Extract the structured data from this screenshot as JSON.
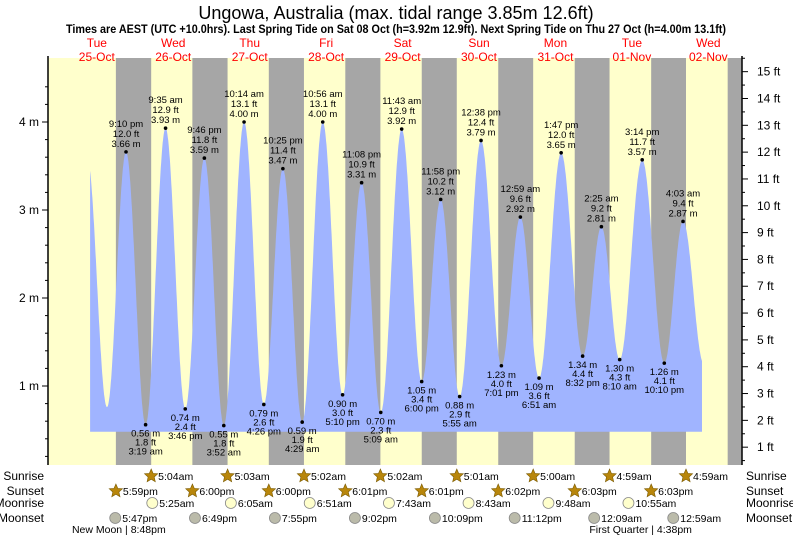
{
  "title": "Ungowa, Australia (max. tidal range 3.85m 12.6ft)",
  "subtitle": "Times are AEST (UTC +10.0hrs). Last Spring Tide on Sat 08 Oct (h=3.92m 12.9ft). Next Spring Tide on Thu 27 Oct (h=4.00m 13.1ft)",
  "colors": {
    "day": "#ffffcc",
    "night": "#a6a6a6",
    "water": "#a0b4ff",
    "daylabel": "#ff0000",
    "sun": "#b8860b",
    "moonrise": "#ffffcc",
    "moonset": "#bbbbaa"
  },
  "chart_data": {
    "type": "area",
    "title": "Ungowa, Australia (max. tidal range 3.85m 12.6ft)",
    "days": [
      {
        "weekday": "Tue",
        "date": "25-Oct"
      },
      {
        "weekday": "Wed",
        "date": "26-Oct"
      },
      {
        "weekday": "Thu",
        "date": "27-Oct"
      },
      {
        "weekday": "Fri",
        "date": "28-Oct"
      },
      {
        "weekday": "Sat",
        "date": "29-Oct"
      },
      {
        "weekday": "Sun",
        "date": "30-Oct"
      },
      {
        "weekday": "Mon",
        "date": "31-Oct"
      },
      {
        "weekday": "Tue",
        "date": "01-Nov"
      },
      {
        "weekday": "Wed",
        "date": "02-Nov"
      }
    ],
    "y_left": {
      "unit": "m",
      "ticks": [
        "1 m",
        "2 m",
        "3 m",
        "4 m"
      ],
      "values": [
        1,
        2,
        3,
        4
      ],
      "ylim": [
        0,
        4.7
      ]
    },
    "y_right": {
      "unit": "ft",
      "ticks": [
        "1 ft",
        "2 ft",
        "3 ft",
        "4 ft",
        "5 ft",
        "6 ft",
        "7 ft",
        "8 ft",
        "9 ft",
        "10 ft",
        "11 ft",
        "12 ft",
        "13 ft",
        "14 ft",
        "15 ft"
      ],
      "values": [
        1,
        2,
        3,
        4,
        5,
        6,
        7,
        8,
        9,
        10,
        11,
        12,
        13,
        14,
        15
      ]
    },
    "tides": [
      {
        "day": 0,
        "type": "high",
        "time": "9:10 pm",
        "m": "3.66 m",
        "ft": "12.0 ft",
        "value": 3.66
      },
      {
        "day": 1,
        "type": "low",
        "time": "3:19 am",
        "m": "0.56 m",
        "ft": "1.8 ft",
        "value": 0.56
      },
      {
        "day": 1,
        "type": "high",
        "time": "9:35 am",
        "m": "3.93 m",
        "ft": "12.9 ft",
        "value": 3.93
      },
      {
        "day": 1,
        "type": "low",
        "time": "3:46 pm",
        "m": "0.74 m",
        "ft": "2.4 ft",
        "value": 0.74
      },
      {
        "day": 1,
        "type": "high",
        "time": "9:46 pm",
        "m": "3.59 m",
        "ft": "11.8 ft",
        "value": 3.59
      },
      {
        "day": 2,
        "type": "low",
        "time": "3:52 am",
        "m": "0.55 m",
        "ft": "1.8 ft",
        "value": 0.55
      },
      {
        "day": 2,
        "type": "high",
        "time": "10:14 am",
        "m": "4.00 m",
        "ft": "13.1 ft",
        "value": 4.0
      },
      {
        "day": 2,
        "type": "low",
        "time": "4:26 pm",
        "m": "0.79 m",
        "ft": "2.6 ft",
        "value": 0.79
      },
      {
        "day": 2,
        "type": "high",
        "time": "10:25 pm",
        "m": "3.47 m",
        "ft": "11.4 ft",
        "value": 3.47
      },
      {
        "day": 3,
        "type": "low",
        "time": "4:29 am",
        "m": "0.59 m",
        "ft": "1.9 ft",
        "value": 0.59
      },
      {
        "day": 3,
        "type": "high",
        "time": "10:56 am",
        "m": "4.00 m",
        "ft": "13.1 ft",
        "value": 4.0
      },
      {
        "day": 3,
        "type": "low",
        "time": "5:10 pm",
        "m": "0.90 m",
        "ft": "3.0 ft",
        "value": 0.9
      },
      {
        "day": 3,
        "type": "high",
        "time": "11:08 pm",
        "m": "3.31 m",
        "ft": "10.9 ft",
        "value": 3.31
      },
      {
        "day": 4,
        "type": "low",
        "time": "5:09 am",
        "m": "0.70 m",
        "ft": "2.3 ft",
        "value": 0.7
      },
      {
        "day": 4,
        "type": "high",
        "time": "11:43 am",
        "m": "3.92 m",
        "ft": "12.9 ft",
        "value": 3.92
      },
      {
        "day": 4,
        "type": "low",
        "time": "6:00 pm",
        "m": "1.05 m",
        "ft": "3.4 ft",
        "value": 1.05
      },
      {
        "day": 4,
        "type": "high",
        "time": "11:58 pm",
        "m": "3.12 m",
        "ft": "10.2 ft",
        "value": 3.12
      },
      {
        "day": 5,
        "type": "low",
        "time": "5:55 am",
        "m": "0.88 m",
        "ft": "2.9 ft",
        "value": 0.88
      },
      {
        "day": 5,
        "type": "high",
        "time": "12:38 pm",
        "m": "3.79 m",
        "ft": "12.4 ft",
        "value": 3.79
      },
      {
        "day": 5,
        "type": "low",
        "time": "7:01 pm",
        "m": "1.23 m",
        "ft": "4.0 ft",
        "value": 1.23
      },
      {
        "day": 6,
        "type": "high",
        "time": "12:59 am",
        "m": "2.92 m",
        "ft": "9.6 ft",
        "value": 2.92
      },
      {
        "day": 6,
        "type": "low",
        "time": "6:51 am",
        "m": "1.09 m",
        "ft": "3.6 ft",
        "value": 1.09
      },
      {
        "day": 6,
        "type": "high",
        "time": "1:47 pm",
        "m": "3.65 m",
        "ft": "12.0 ft",
        "value": 3.65
      },
      {
        "day": 6,
        "type": "low",
        "time": "8:32 pm",
        "m": "1.34 m",
        "ft": "4.4 ft",
        "value": 1.34
      },
      {
        "day": 7,
        "type": "high",
        "time": "2:25 am",
        "m": "2.81 m",
        "ft": "9.2 ft",
        "value": 2.81
      },
      {
        "day": 7,
        "type": "low",
        "time": "8:10 am",
        "m": "1.30 m",
        "ft": "4.3 ft",
        "value": 1.3
      },
      {
        "day": 7,
        "type": "high",
        "time": "3:14 pm",
        "m": "3.57 m",
        "ft": "11.7 ft",
        "value": 3.57
      },
      {
        "day": 7,
        "type": "low",
        "time": "10:10 pm",
        "m": "1.26 m",
        "ft": "4.1 ft",
        "value": 1.26
      },
      {
        "day": 8,
        "type": "high",
        "time": "4:03 am",
        "m": "2.87 m",
        "ft": "9.4 ft",
        "value": 2.87
      }
    ],
    "unlabeled_extremes": [
      {
        "day": 0,
        "hour": 8.9,
        "value": 3.62
      },
      {
        "day": 0,
        "hour": 15.2,
        "value": 0.76
      },
      {
        "day": 8,
        "hour": 10.6,
        "value": 1.25
      }
    ],
    "curve_start": {
      "day": 0,
      "hour": 9.9
    },
    "curve_end": {
      "day": 8,
      "hour": 10.0
    },
    "curve_base_m": 0.48
  },
  "rows": {
    "sunrise": "Sunrise",
    "sunset": "Sunset",
    "moonrise": "Moonrise",
    "moonset": "Moonset"
  },
  "sunrise": [
    {
      "day": 1,
      "time": "5:04am"
    },
    {
      "day": 2,
      "time": "5:03am"
    },
    {
      "day": 3,
      "time": "5:02am"
    },
    {
      "day": 4,
      "time": "5:02am"
    },
    {
      "day": 5,
      "time": "5:01am"
    },
    {
      "day": 6,
      "time": "5:00am"
    },
    {
      "day": 7,
      "time": "4:59am"
    },
    {
      "day": 8,
      "time": "4:59am"
    }
  ],
  "sunset": [
    {
      "day": 0,
      "time": "5:59pm"
    },
    {
      "day": 1,
      "time": "6:00pm"
    },
    {
      "day": 2,
      "time": "6:00pm"
    },
    {
      "day": 3,
      "time": "6:01pm"
    },
    {
      "day": 4,
      "time": "6:01pm"
    },
    {
      "day": 5,
      "time": "6:02pm"
    },
    {
      "day": 6,
      "time": "6:03pm"
    },
    {
      "day": 7,
      "time": "6:03pm"
    }
  ],
  "moonrise": [
    {
      "day": 1,
      "time": "5:25am"
    },
    {
      "day": 2,
      "time": "6:05am"
    },
    {
      "day": 3,
      "time": "6:51am"
    },
    {
      "day": 4,
      "time": "7:43am"
    },
    {
      "day": 5,
      "time": "8:43am"
    },
    {
      "day": 6,
      "time": "9:48am"
    },
    {
      "day": 7,
      "time": "10:55am"
    }
  ],
  "moonset": [
    {
      "day": 0,
      "time": "5:47pm"
    },
    {
      "day": 1,
      "time": "6:49pm"
    },
    {
      "day": 2,
      "time": "7:55pm"
    },
    {
      "day": 3,
      "time": "9:02pm"
    },
    {
      "day": 4,
      "time": "10:09pm"
    },
    {
      "day": 5,
      "time": "11:12pm"
    },
    {
      "day": 7,
      "time": "12:09am"
    },
    {
      "day": 8,
      "time": "12:59am"
    }
  ],
  "moon_phases": [
    {
      "day": 0,
      "time": "8:48pm",
      "label": "New Moon | 8:48pm"
    },
    {
      "day": 7,
      "time": "4:38pm",
      "label": "First Quarter | 4:38pm"
    }
  ]
}
